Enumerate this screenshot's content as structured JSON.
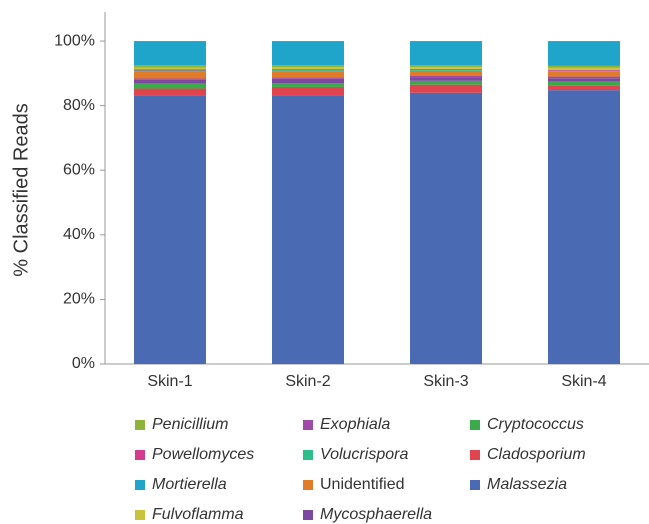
{
  "chart_data": {
    "type": "stacked_bar",
    "ylabel": "% Classified Reads",
    "categories": [
      "Skin-1",
      "Skin-2",
      "Skin-3",
      "Skin-4"
    ],
    "ylim": [
      0,
      109
    ],
    "yticks": [
      {
        "value": 0,
        "label": "0%"
      },
      {
        "value": 20,
        "label": "20%"
      },
      {
        "value": 40,
        "label": "40%"
      },
      {
        "value": 60,
        "label": "60%"
      },
      {
        "value": 80,
        "label": "80%"
      },
      {
        "value": 100,
        "label": "100%"
      }
    ],
    "series": [
      {
        "name": "Penicillium",
        "color": "#8db33a",
        "values": [
          0.7,
          0.6,
          0.6,
          0.6
        ]
      },
      {
        "name": "Exophiala",
        "color": "#a04aa8",
        "values": [
          0.4,
          0.4,
          0.6,
          0.5
        ]
      },
      {
        "name": "Cryptococcus",
        "color": "#3aaa4a",
        "values": [
          1.5,
          1.2,
          1.2,
          1.2
        ]
      },
      {
        "name": "Powellomyces",
        "color": "#d63c8e",
        "values": [
          0.3,
          0.3,
          0.3,
          0.3
        ]
      },
      {
        "name": "Volucrispora",
        "color": "#2bbf8a",
        "values": [
          0.3,
          0.3,
          0.3,
          0.3
        ]
      },
      {
        "name": "Cladosporium",
        "color": "#e0454f",
        "values": [
          2.3,
          2.8,
          2.5,
          1.5
        ]
      },
      {
        "name": "Mortierella",
        "color": "#1fa5c9",
        "values": [
          7.5,
          7.5,
          7.5,
          7.7
        ]
      },
      {
        "name": "Unidentified",
        "color": "#e07b2a",
        "values": [
          2.2,
          2.0,
          1.5,
          1.5
        ]
      },
      {
        "name": "Malassezia",
        "color": "#4a6ab4",
        "values": [
          83,
          83,
          84,
          84.8
        ]
      },
      {
        "name": "Fulvoflamma",
        "color": "#c8c43a",
        "values": [
          0.6,
          0.6,
          0.5,
          0.6
        ]
      },
      {
        "name": "Mycosphaerella",
        "color": "#7b4aa0",
        "values": [
          1.2,
          1.3,
          1.0,
          1.0
        ]
      }
    ]
  }
}
